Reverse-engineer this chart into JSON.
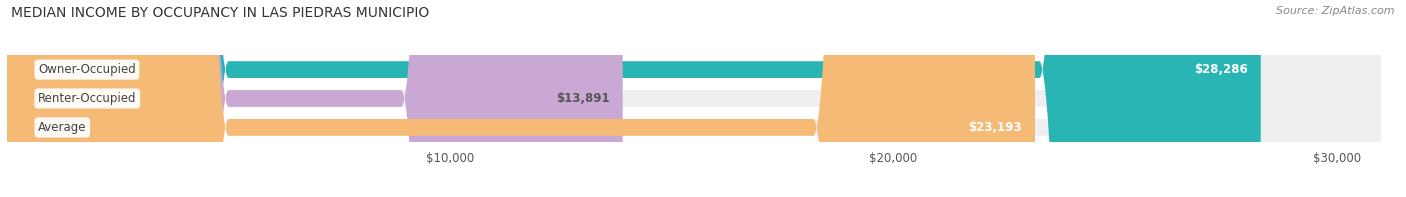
{
  "title": "MEDIAN INCOME BY OCCUPANCY IN LAS PIEDRAS MUNICIPIO",
  "source": "Source: ZipAtlas.com",
  "categories": [
    "Owner-Occupied",
    "Renter-Occupied",
    "Average"
  ],
  "values": [
    28286,
    13891,
    23193
  ],
  "bar_colors": [
    "#2ab5b5",
    "#c9a8d4",
    "#f5bb76"
  ],
  "bar_bg_color": "#efefef",
  "label_colors": [
    "#ffffff",
    "#555555",
    "#ffffff"
  ],
  "value_labels": [
    "$28,286",
    "$13,891",
    "$23,193"
  ],
  "x_ticks": [
    10000,
    20000,
    30000
  ],
  "x_tick_labels": [
    "$10,000",
    "$20,000",
    "$30,000"
  ],
  "x_max": 31500,
  "x_min": 0,
  "title_fontsize": 10,
  "source_fontsize": 8,
  "bar_label_fontsize": 8.5,
  "value_label_fontsize": 8.5,
  "bar_height": 0.58,
  "background_color": "#ffffff",
  "title_color": "#333333",
  "tick_label_color": "#555555"
}
